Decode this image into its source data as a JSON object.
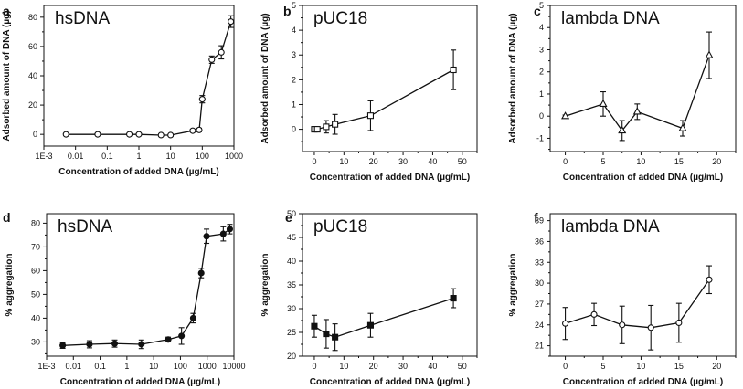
{
  "figure": {
    "bg": "#ffffff",
    "ink": "#111111"
  },
  "chart_data": [
    {
      "panel": "a",
      "title": "hsDNA",
      "type": "line",
      "xscale": "log",
      "xlabel": "Concentration of added DNA (µg/mL)",
      "ylabel": "Adsorbed amount of DNA (µg)",
      "xlim": [
        0.001,
        1000
      ],
      "ylim": [
        -8,
        88
      ],
      "xticks": [
        0.001,
        0.01,
        0.1,
        1,
        10,
        100,
        1000
      ],
      "xtick_labels": [
        "1E-3",
        "0.01",
        "0.1",
        "1",
        "10",
        "100",
        "1000"
      ],
      "yticks": [
        0,
        20,
        40,
        60,
        80
      ],
      "ytick_labels": [
        "0",
        "20",
        "40",
        "60",
        "80"
      ],
      "marker": "circle-open",
      "x": [
        0.005,
        0.05,
        0.5,
        1,
        5,
        10,
        50,
        80,
        100,
        200,
        400,
        800
      ],
      "y": [
        0,
        0,
        0,
        0,
        -0.5,
        -0.5,
        2.5,
        3,
        24,
        51,
        56,
        77
      ],
      "err": [
        0.7,
        0.5,
        0.5,
        0.5,
        0.7,
        0.8,
        1,
        1.2,
        2.5,
        2.5,
        4.5,
        4
      ]
    },
    {
      "panel": "b",
      "title": "pUC18",
      "type": "line",
      "xscale": "linear",
      "xlabel": "Concentration of added DNA (µg/mL)",
      "ylabel": "Adsorbed amount of DNA (µg)",
      "xlim": [
        -4,
        55
      ],
      "ylim": [
        -0.9,
        5
      ],
      "xticks": [
        0,
        10,
        20,
        30,
        40,
        50
      ],
      "xtick_labels": [
        "0",
        "10",
        "20",
        "30",
        "40",
        "50"
      ],
      "yticks": [
        0,
        1,
        2,
        3,
        4,
        5
      ],
      "ytick_labels": [
        "0",
        "1",
        "2",
        "3",
        "4",
        "5"
      ],
      "marker": "square-open",
      "x": [
        0,
        1,
        4,
        7,
        19,
        47
      ],
      "y": [
        0,
        0,
        0.1,
        0.2,
        0.55,
        2.4
      ],
      "err": [
        0.03,
        0.05,
        0.25,
        0.4,
        0.6,
        0.8
      ]
    },
    {
      "panel": "c",
      "title": "lambda DNA",
      "type": "line",
      "xscale": "linear",
      "xlabel": "Concentration of added DNA (µg/mL)",
      "ylabel": "Adsorbed amount of DNA (µg)",
      "xlim": [
        -2,
        22.5
      ],
      "ylim": [
        -1.6,
        5
      ],
      "xticks": [
        0,
        5,
        10,
        15,
        20
      ],
      "xtick_labels": [
        "0",
        "5",
        "10",
        "15",
        "20"
      ],
      "yticks": [
        -1,
        0,
        1,
        2,
        3,
        4,
        5
      ],
      "ytick_labels": [
        "-1",
        "0",
        "1",
        "2",
        "3",
        "4",
        "5"
      ],
      "marker": "triangle-open",
      "x": [
        0,
        5,
        7.5,
        9.5,
        15.5,
        19
      ],
      "y": [
        0,
        0.55,
        -0.65,
        0.2,
        -0.55,
        2.75
      ],
      "err": [
        0.05,
        0.55,
        0.45,
        0.35,
        0.35,
        1.05
      ]
    },
    {
      "panel": "d",
      "title": "hsDNA",
      "type": "line",
      "xscale": "log",
      "xlabel": "Concentration of added DNA (µg/mL)",
      "ylabel": "% aggregation",
      "xlim": [
        0.001,
        10000
      ],
      "ylim": [
        24,
        84
      ],
      "xticks": [
        0.001,
        0.01,
        0.1,
        1,
        10,
        100,
        1000,
        10000
      ],
      "xtick_labels": [
        "1E-3",
        "0.01",
        "0.1",
        "1",
        "10",
        "100",
        "1000",
        "10000"
      ],
      "yticks": [
        30,
        40,
        50,
        60,
        70,
        80
      ],
      "ytick_labels": [
        "30",
        "40",
        "50",
        "60",
        "70",
        "80"
      ],
      "marker": "circle-filled",
      "x": [
        0.004,
        0.04,
        0.35,
        3.5,
        35,
        110,
        300,
        600,
        950,
        4000,
        7000
      ],
      "y": [
        28.5,
        29,
        29.3,
        29,
        31,
        32.5,
        40,
        59,
        74.5,
        75.5,
        77.5
      ],
      "err": [
        1.2,
        1.5,
        1.5,
        1.8,
        1,
        3.5,
        2,
        2,
        3,
        3,
        2
      ]
    },
    {
      "panel": "e",
      "title": "pUC18",
      "type": "line",
      "xscale": "linear",
      "xlabel": "Concentration of added DNA (µg/mL)",
      "ylabel": "% aggregation",
      "xlim": [
        -4,
        55
      ],
      "ylim": [
        20,
        50
      ],
      "xticks": [
        0,
        10,
        20,
        30,
        40,
        50
      ],
      "xtick_labels": [
        "0",
        "10",
        "20",
        "30",
        "40",
        "50"
      ],
      "yticks": [
        20,
        25,
        30,
        35,
        40,
        45,
        50
      ],
      "ytick_labels": [
        "20",
        "25",
        "30",
        "35",
        "40",
        "45",
        "50"
      ],
      "marker": "square-filled",
      "x": [
        0,
        4,
        7,
        19,
        47
      ],
      "y": [
        26.3,
        24.7,
        24,
        26.5,
        32.2
      ],
      "err": [
        2.3,
        3,
        2.8,
        2.5,
        2
      ]
    },
    {
      "panel": "f",
      "title": "lambda DNA",
      "type": "line",
      "xscale": "linear",
      "xlabel": "Concentration of added DNA (µg/mL)",
      "ylabel": "% aggregation",
      "xlim": [
        -2,
        22.5
      ],
      "ylim": [
        19.5,
        40
      ],
      "xticks": [
        0,
        5,
        10,
        15,
        20
      ],
      "xtick_labels": [
        "0",
        "5",
        "10",
        "15",
        "20"
      ],
      "yticks": [
        21,
        24,
        27,
        30,
        33,
        36,
        39
      ],
      "ytick_labels": [
        "21",
        "24",
        "27",
        "30",
        "33",
        "36",
        "39"
      ],
      "marker": "circle-open",
      "x": [
        0,
        3.8,
        7.5,
        11.3,
        15,
        19
      ],
      "y": [
        24.2,
        25.5,
        24,
        23.6,
        24.3,
        30.5
      ],
      "err": [
        2.3,
        1.6,
        2.7,
        3.2,
        2.8,
        2
      ]
    }
  ]
}
